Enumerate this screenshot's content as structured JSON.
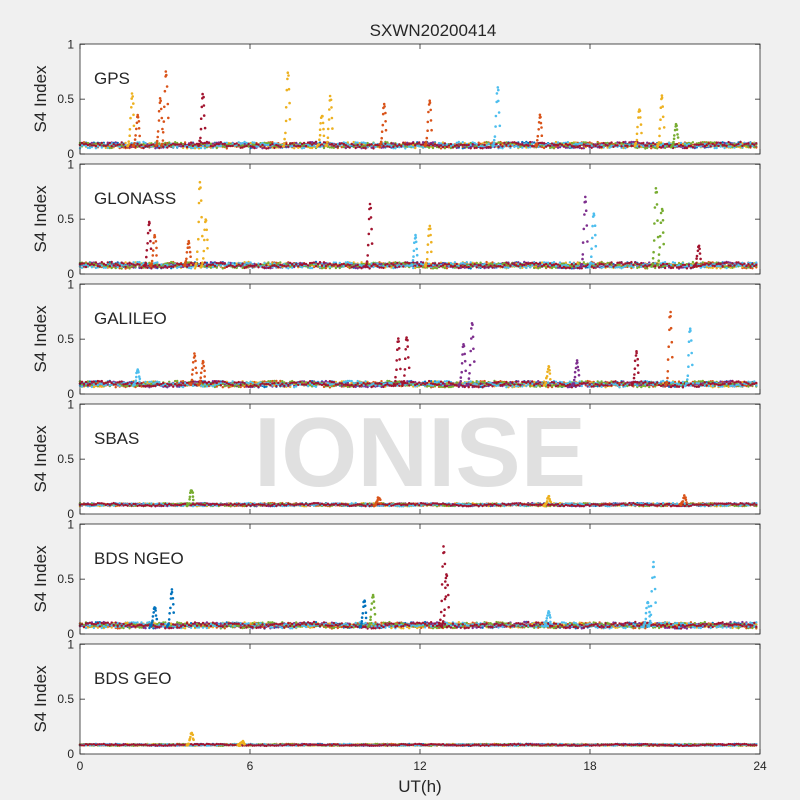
{
  "figure": {
    "title": "SXWN20200414",
    "watermark": "IONISE",
    "background": "#f0f0f0",
    "axes_color": "#262626",
    "palette": [
      "#0072BD",
      "#D95319",
      "#EDB120",
      "#7E2F8E",
      "#77AC30",
      "#4DBEEE",
      "#A2142F"
    ]
  },
  "chart_data": [
    {
      "type": "scatter",
      "label": "GPS",
      "xlabel": "",
      "ylabel": "S4 Index",
      "xlim": [
        0,
        24
      ],
      "ylim": [
        0,
        1
      ],
      "xticks": [
        0,
        6,
        12,
        18,
        24
      ],
      "yticks": [
        0,
        0.5,
        1
      ],
      "show_xticklabels": false,
      "baseline": 0.07,
      "noise": 0.04,
      "spikes": [
        {
          "x": 1.8,
          "peak": 0.55,
          "color": 2
        },
        {
          "x": 2.0,
          "peak": 0.35,
          "color": 1
        },
        {
          "x": 2.8,
          "peak": 0.5,
          "color": 1
        },
        {
          "x": 3.0,
          "peak": 0.75,
          "color": 1
        },
        {
          "x": 4.3,
          "peak": 0.54,
          "color": 6
        },
        {
          "x": 7.3,
          "peak": 0.74,
          "color": 2
        },
        {
          "x": 8.5,
          "peak": 0.35,
          "color": 2
        },
        {
          "x": 8.8,
          "peak": 0.52,
          "color": 2
        },
        {
          "x": 10.7,
          "peak": 0.45,
          "color": 1
        },
        {
          "x": 12.3,
          "peak": 0.49,
          "color": 1
        },
        {
          "x": 14.7,
          "peak": 0.6,
          "color": 5
        },
        {
          "x": 16.2,
          "peak": 0.35,
          "color": 1
        },
        {
          "x": 19.7,
          "peak": 0.41,
          "color": 2
        },
        {
          "x": 20.5,
          "peak": 0.53,
          "color": 2
        },
        {
          "x": 21.0,
          "peak": 0.27,
          "color": 4
        }
      ]
    },
    {
      "type": "scatter",
      "label": "GLONASS",
      "xlabel": "",
      "ylabel": "S4 Index",
      "xlim": [
        0,
        24
      ],
      "ylim": [
        0,
        1
      ],
      "xticks": [
        0,
        6,
        12,
        18,
        24
      ],
      "yticks": [
        0,
        0.5,
        1
      ],
      "show_xticklabels": false,
      "baseline": 0.07,
      "noise": 0.04,
      "spikes": [
        {
          "x": 2.4,
          "peak": 0.48,
          "color": 6
        },
        {
          "x": 2.6,
          "peak": 0.35,
          "color": 1
        },
        {
          "x": 3.8,
          "peak": 0.3,
          "color": 1
        },
        {
          "x": 4.2,
          "peak": 0.83,
          "color": 2
        },
        {
          "x": 4.4,
          "peak": 0.5,
          "color": 2
        },
        {
          "x": 10.2,
          "peak": 0.64,
          "color": 6
        },
        {
          "x": 11.8,
          "peak": 0.35,
          "color": 5
        },
        {
          "x": 12.3,
          "peak": 0.44,
          "color": 2
        },
        {
          "x": 17.8,
          "peak": 0.7,
          "color": 3
        },
        {
          "x": 18.1,
          "peak": 0.55,
          "color": 5
        },
        {
          "x": 20.3,
          "peak": 0.79,
          "color": 4
        },
        {
          "x": 20.5,
          "peak": 0.6,
          "color": 4
        },
        {
          "x": 21.8,
          "peak": 0.26,
          "color": 6
        }
      ]
    },
    {
      "type": "scatter",
      "label": "GALILEO",
      "xlabel": "",
      "ylabel": "S4 Index",
      "xlim": [
        0,
        24
      ],
      "ylim": [
        0,
        1
      ],
      "xticks": [
        0,
        6,
        12,
        18,
        24
      ],
      "yticks": [
        0,
        0.5,
        1
      ],
      "show_xticklabels": false,
      "baseline": 0.08,
      "noise": 0.04,
      "spikes": [
        {
          "x": 2.0,
          "peak": 0.22,
          "color": 5
        },
        {
          "x": 4.0,
          "peak": 0.36,
          "color": 1
        },
        {
          "x": 4.3,
          "peak": 0.3,
          "color": 1
        },
        {
          "x": 11.2,
          "peak": 0.5,
          "color": 6
        },
        {
          "x": 11.5,
          "peak": 0.52,
          "color": 6
        },
        {
          "x": 13.5,
          "peak": 0.45,
          "color": 3
        },
        {
          "x": 13.8,
          "peak": 0.65,
          "color": 3
        },
        {
          "x": 16.5,
          "peak": 0.25,
          "color": 2
        },
        {
          "x": 17.5,
          "peak": 0.3,
          "color": 3
        },
        {
          "x": 19.6,
          "peak": 0.38,
          "color": 6
        },
        {
          "x": 20.8,
          "peak": 0.75,
          "color": 1
        },
        {
          "x": 21.5,
          "peak": 0.6,
          "color": 5
        }
      ]
    },
    {
      "type": "scatter",
      "label": "SBAS",
      "xlabel": "",
      "ylabel": "S4 Index",
      "xlim": [
        0,
        24
      ],
      "ylim": [
        0,
        1
      ],
      "xticks": [
        0,
        6,
        12,
        18,
        24
      ],
      "yticks": [
        0,
        0.5,
        1
      ],
      "show_xticklabels": false,
      "baseline": 0.08,
      "noise": 0.02,
      "spikes": [
        {
          "x": 3.9,
          "peak": 0.22,
          "color": 4
        },
        {
          "x": 10.5,
          "peak": 0.15,
          "color": 1
        },
        {
          "x": 16.5,
          "peak": 0.16,
          "color": 2
        },
        {
          "x": 21.3,
          "peak": 0.16,
          "color": 1
        }
      ]
    },
    {
      "type": "scatter",
      "label": "BDS NGEO",
      "xlabel": "",
      "ylabel": "S4 Index",
      "xlim": [
        0,
        24
      ],
      "ylim": [
        0,
        1
      ],
      "xticks": [
        0,
        6,
        12,
        18,
        24
      ],
      "yticks": [
        0,
        0.5,
        1
      ],
      "show_xticklabels": false,
      "baseline": 0.07,
      "noise": 0.04,
      "spikes": [
        {
          "x": 2.6,
          "peak": 0.25,
          "color": 0
        },
        {
          "x": 3.2,
          "peak": 0.4,
          "color": 0
        },
        {
          "x": 10.0,
          "peak": 0.3,
          "color": 0
        },
        {
          "x": 10.3,
          "peak": 0.35,
          "color": 4
        },
        {
          "x": 12.8,
          "peak": 0.79,
          "color": 6
        },
        {
          "x": 12.9,
          "peak": 0.55,
          "color": 6
        },
        {
          "x": 16.5,
          "peak": 0.2,
          "color": 5
        },
        {
          "x": 20.0,
          "peak": 0.3,
          "color": 5
        },
        {
          "x": 20.2,
          "peak": 0.65,
          "color": 5
        }
      ]
    },
    {
      "type": "scatter",
      "label": "BDS GEO",
      "xlabel": "UT(h)",
      "ylabel": "S4 Index",
      "xlim": [
        0,
        24
      ],
      "ylim": [
        0,
        1
      ],
      "xticks": [
        0,
        6,
        12,
        18,
        24
      ],
      "yticks": [
        0,
        0.5,
        1
      ],
      "show_xticklabels": true,
      "baseline": 0.08,
      "noise": 0.012,
      "spikes": [
        {
          "x": 3.9,
          "peak": 0.19,
          "color": 2
        },
        {
          "x": 5.7,
          "peak": 0.11,
          "color": 2
        }
      ]
    }
  ]
}
